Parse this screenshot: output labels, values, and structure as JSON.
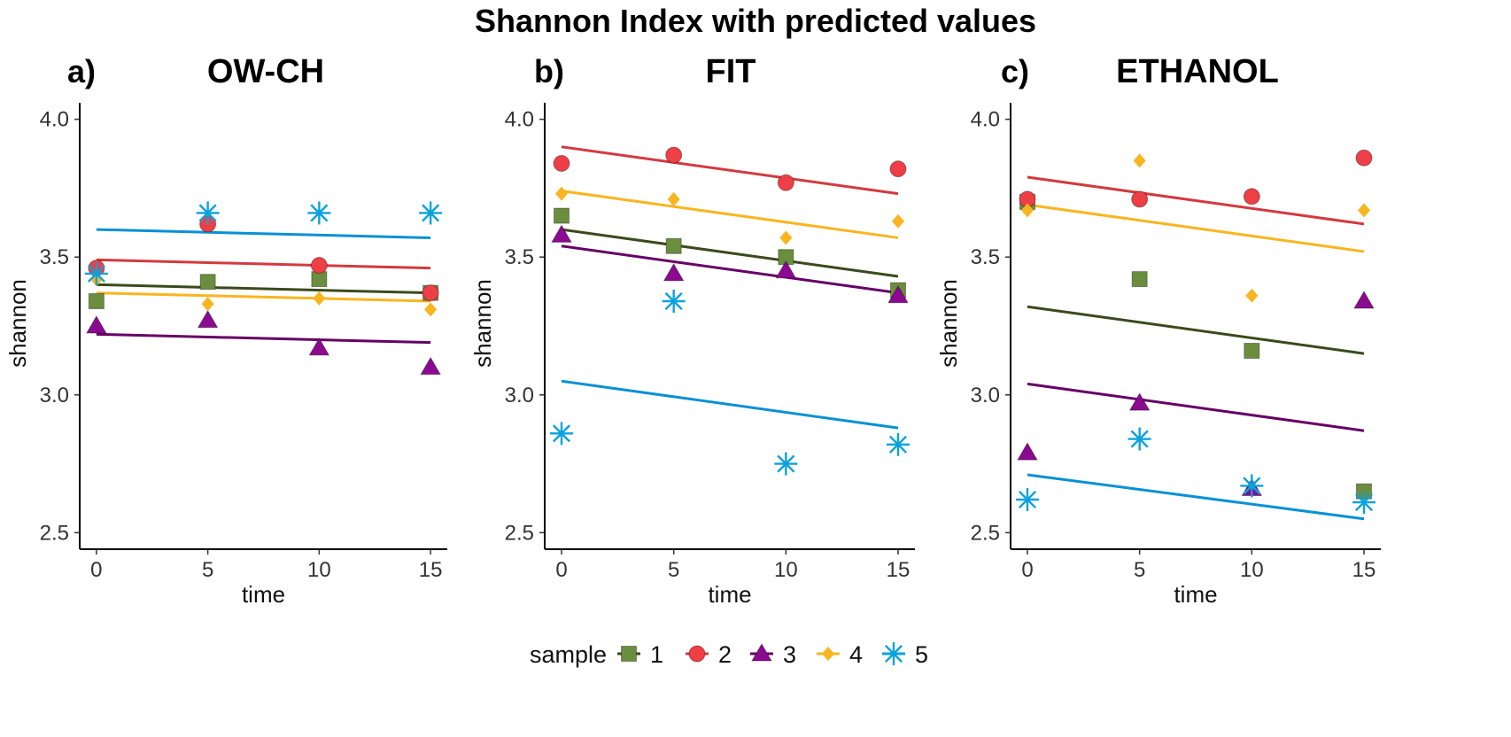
{
  "title": "Shannon Index with predicted values",
  "chart_data": {
    "type": "scatter",
    "x_label": "time",
    "y_label": "shannon",
    "x_ticks": [
      0,
      5,
      10,
      15
    ],
    "y_ticks": [
      2.5,
      3.0,
      3.5,
      4.0
    ],
    "x_tick_labels": [
      "0",
      "5",
      "10",
      "15"
    ],
    "y_tick_labels": [
      "2.5",
      "3.0",
      "3.5",
      "4.0"
    ],
    "xlim": [
      -0.75,
      15.75
    ],
    "ylim": [
      2.44,
      4.06
    ],
    "legend": {
      "title": "sample",
      "position": "bottom",
      "entries": [
        {
          "label": "1",
          "shape": "square",
          "color": "#6b8e3e",
          "line_color": "#3b4a1c"
        },
        {
          "label": "2",
          "shape": "circle",
          "color": "#ee3f46",
          "line_color": "#d33a3f"
        },
        {
          "label": "3",
          "shape": "triangle",
          "color": "#8b0a8f",
          "line_color": "#660066"
        },
        {
          "label": "4",
          "shape": "diamond",
          "color": "#f9b51f",
          "line_color": "#f9b51f"
        },
        {
          "label": "5",
          "shape": "asterisk",
          "color": "#0aa2dc",
          "line_color": "#0891d6"
        }
      ]
    },
    "panels": [
      {
        "tag": "a)",
        "title": "OW-CH",
        "series": [
          {
            "sample": "1",
            "points": [
              [
                0,
                3.34
              ],
              [
                5,
                3.41
              ],
              [
                10,
                3.42
              ],
              [
                15,
                3.37
              ]
            ],
            "fit": [
              3.4,
              3.37
            ]
          },
          {
            "sample": "2",
            "points": [
              [
                0,
                3.46
              ],
              [
                5,
                3.62
              ],
              [
                10,
                3.47
              ],
              [
                15,
                3.37
              ]
            ],
            "fit": [
              3.49,
              3.46
            ]
          },
          {
            "sample": "3",
            "points": [
              [
                0,
                3.25
              ],
              [
                5,
                3.27
              ],
              [
                10,
                3.17
              ],
              [
                15,
                3.1
              ]
            ],
            "fit": [
              3.22,
              3.19
            ]
          },
          {
            "sample": "4",
            "points": [
              [
                0,
                3.42
              ],
              [
                5,
                3.33
              ],
              [
                10,
                3.35
              ],
              [
                15,
                3.31
              ]
            ],
            "fit": [
              3.37,
              3.34
            ]
          },
          {
            "sample": "5",
            "points": [
              [
                0,
                3.44
              ],
              [
                5,
                3.66
              ],
              [
                10,
                3.66
              ],
              [
                15,
                3.66
              ]
            ],
            "fit": [
              3.6,
              3.57
            ]
          }
        ]
      },
      {
        "tag": "b)",
        "title": "FIT",
        "series": [
          {
            "sample": "1",
            "points": [
              [
                0,
                3.65
              ],
              [
                5,
                3.54
              ],
              [
                10,
                3.5
              ],
              [
                15,
                3.38
              ]
            ],
            "fit": [
              3.6,
              3.43
            ]
          },
          {
            "sample": "2",
            "points": [
              [
                0,
                3.84
              ],
              [
                5,
                3.87
              ],
              [
                10,
                3.77
              ],
              [
                15,
                3.82
              ]
            ],
            "fit": [
              3.9,
              3.73
            ]
          },
          {
            "sample": "3",
            "points": [
              [
                0,
                3.58
              ],
              [
                5,
                3.44
              ],
              [
                10,
                3.45
              ],
              [
                15,
                3.36
              ]
            ],
            "fit": [
              3.54,
              3.37
            ]
          },
          {
            "sample": "4",
            "points": [
              [
                0,
                3.73
              ],
              [
                5,
                3.71
              ],
              [
                10,
                3.57
              ],
              [
                15,
                3.63
              ]
            ],
            "fit": [
              3.74,
              3.57
            ]
          },
          {
            "sample": "5",
            "points": [
              [
                0,
                2.86
              ],
              [
                5,
                3.34
              ],
              [
                10,
                2.75
              ],
              [
                15,
                2.82
              ]
            ],
            "fit": [
              3.05,
              2.88
            ]
          }
        ]
      },
      {
        "tag": "c)",
        "title": "ETHANOL",
        "series": [
          {
            "sample": "1",
            "points": [
              [
                0,
                3.7
              ],
              [
                5,
                3.42
              ],
              [
                10,
                3.16
              ],
              [
                15,
                2.65
              ]
            ],
            "fit": [
              3.32,
              3.15
            ]
          },
          {
            "sample": "2",
            "points": [
              [
                0,
                3.71
              ],
              [
                5,
                3.71
              ],
              [
                10,
                3.72
              ],
              [
                15,
                3.86
              ]
            ],
            "fit": [
              3.79,
              3.62
            ]
          },
          {
            "sample": "3",
            "points": [
              [
                0,
                2.79
              ],
              [
                5,
                2.97
              ],
              [
                10,
                2.66
              ],
              [
                15,
                3.34
              ]
            ],
            "fit": [
              3.04,
              2.87
            ]
          },
          {
            "sample": "4",
            "points": [
              [
                0,
                3.67
              ],
              [
                5,
                3.85
              ],
              [
                10,
                3.36
              ],
              [
                15,
                3.67
              ]
            ],
            "fit": [
              3.69,
              3.52
            ]
          },
          {
            "sample": "5",
            "points": [
              [
                0,
                2.62
              ],
              [
                5,
                2.84
              ],
              [
                10,
                2.67
              ],
              [
                15,
                2.61
              ]
            ],
            "fit": [
              2.71,
              2.55
            ]
          }
        ]
      }
    ]
  }
}
